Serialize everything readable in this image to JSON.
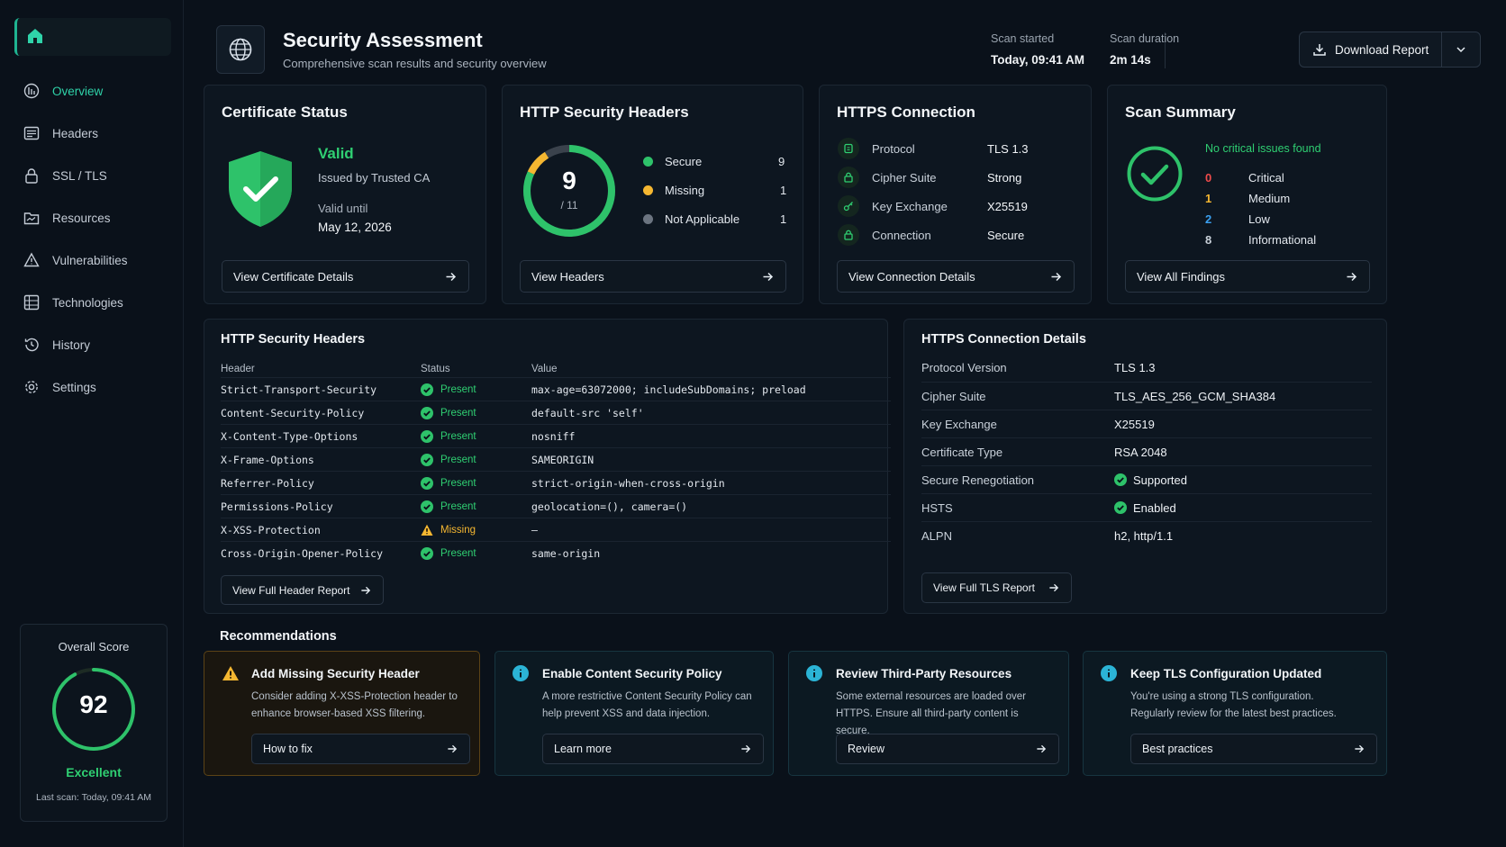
{
  "sidebar": {
    "items": [
      {
        "label": "Overview",
        "icon": "overview-icon",
        "active": true
      },
      {
        "label": "Headers",
        "icon": "headers-icon"
      },
      {
        "label": "SSL / TLS",
        "icon": "lock-icon"
      },
      {
        "label": "Resources",
        "icon": "resources-icon"
      },
      {
        "label": "Vulnerabilities",
        "icon": "bug-icon"
      },
      {
        "label": "Technologies",
        "icon": "technologies-icon"
      },
      {
        "label": "History",
        "icon": "history-icon"
      },
      {
        "label": "Settings",
        "icon": "gear-icon"
      }
    ],
    "score": {
      "title": "Overall Score",
      "value": "92",
      "value_fraction": 0.92,
      "label": "Excellent",
      "last_scan": "Last scan: Today, 09:41 AM"
    }
  },
  "header": {
    "title": "Security Assessment",
    "subtitle": "Comprehensive scan results and security overview",
    "scan_started_label": "Scan started",
    "scan_started_value": "Today, 09:41 AM",
    "scan_duration_label": "Scan duration",
    "scan_duration_value": "2m 14s",
    "download_label": "Download Report"
  },
  "certificate": {
    "title": "Certificate Status",
    "status": "Valid",
    "issuer": "Issued by Trusted CA",
    "valid_until_label": "Valid until",
    "valid_until": "May 12, 2026",
    "button": "View Certificate Details"
  },
  "headers_card": {
    "title": "HTTP Security Headers",
    "score": "9",
    "total": "/ 11",
    "legend": [
      {
        "label": "Secure",
        "value": "9",
        "color": "#2ec26a"
      },
      {
        "label": "Missing",
        "value": "1",
        "color": "#f5b731"
      },
      {
        "label": "Not Applicable",
        "value": "1",
        "color": "#6b7480"
      }
    ],
    "button": "View Headers"
  },
  "https_card": {
    "title": "HTTPS Connection",
    "rows": [
      {
        "label": "Protocol",
        "value": "TLS 1.3"
      },
      {
        "label": "Cipher Suite",
        "value": "Strong"
      },
      {
        "label": "Key Exchange",
        "value": "X25519"
      },
      {
        "label": "Connection",
        "value": "Secure"
      }
    ],
    "button": "View Connection Details"
  },
  "summary": {
    "title": "Scan Summary",
    "headline": "No critical issues found",
    "rows": [
      {
        "count": "0",
        "label": "Critical",
        "color": "#ef4b4b"
      },
      {
        "count": "1",
        "label": "Medium",
        "color": "#f5b731"
      },
      {
        "count": "2",
        "label": "Low",
        "color": "#3aa0f0"
      },
      {
        "count": "8",
        "label": "Informational",
        "color": "#c9d1da"
      }
    ],
    "button": "View All Findings"
  },
  "headers_table": {
    "title": "HTTP Security Headers",
    "columns": [
      "Header",
      "Status",
      "Value"
    ],
    "rows": [
      {
        "header": "Strict-Transport-Security",
        "status": "Present",
        "value": "max-age=63072000; includeSubDomains; preload"
      },
      {
        "header": "Content-Security-Policy",
        "status": "Present",
        "value": "default-src 'self'"
      },
      {
        "header": "X-Content-Type-Options",
        "status": "Present",
        "value": "nosniff"
      },
      {
        "header": "X-Frame-Options",
        "status": "Present",
        "value": "SAMEORIGIN"
      },
      {
        "header": "Referrer-Policy",
        "status": "Present",
        "value": "strict-origin-when-cross-origin"
      },
      {
        "header": "Permissions-Policy",
        "status": "Present",
        "value": "geolocation=(), camera=()"
      },
      {
        "header": "X-XSS-Protection",
        "status": "Missing",
        "value": "–"
      },
      {
        "header": "Cross-Origin-Opener-Policy",
        "status": "Present",
        "value": "same-origin"
      }
    ],
    "button": "View Full Header Report"
  },
  "tls_details": {
    "title": "HTTPS Connection Details",
    "rows": [
      {
        "label": "Protocol Version",
        "value": "TLS 1.3"
      },
      {
        "label": "Cipher Suite",
        "value": "TLS_AES_256_GCM_SHA384"
      },
      {
        "label": "Key Exchange",
        "value": "X25519"
      },
      {
        "label": "Certificate Type",
        "value": "RSA 2048"
      },
      {
        "label": "Secure Renegotiation",
        "value": "Supported",
        "check": true
      },
      {
        "label": "HSTS",
        "value": "Enabled",
        "check": true
      },
      {
        "label": "ALPN",
        "value": "h2, http/1.1"
      }
    ],
    "button": "View Full TLS Report"
  },
  "recommendations": {
    "title": "Recommendations",
    "items": [
      {
        "title": "Add Missing Security Header",
        "desc": "Consider adding X-XSS-Protection header to enhance browser-based XSS filtering.",
        "button": "How to fix",
        "icon": "warning-icon"
      },
      {
        "title": "Enable Content Security Policy",
        "desc": "A more restrictive Content Security Policy can help prevent XSS and data injection.",
        "button": "Learn more",
        "icon": "info-icon"
      },
      {
        "title": "Review Third-Party Resources",
        "desc": "Some external resources are loaded over HTTPS. Ensure all third-party content is secure.",
        "button": "Review",
        "icon": "info-icon"
      },
      {
        "title": "Keep TLS Configuration Updated",
        "desc": "You're using a strong TLS configuration. Regularly review for the latest best practices.",
        "button": "Best practices",
        "icon": "info-icon"
      }
    ]
  },
  "colors": {
    "accent": "#2fd3a9",
    "success": "#2ec26a",
    "warning": "#f5b731",
    "info": "#3aa0f0",
    "danger": "#ef4b4b"
  }
}
